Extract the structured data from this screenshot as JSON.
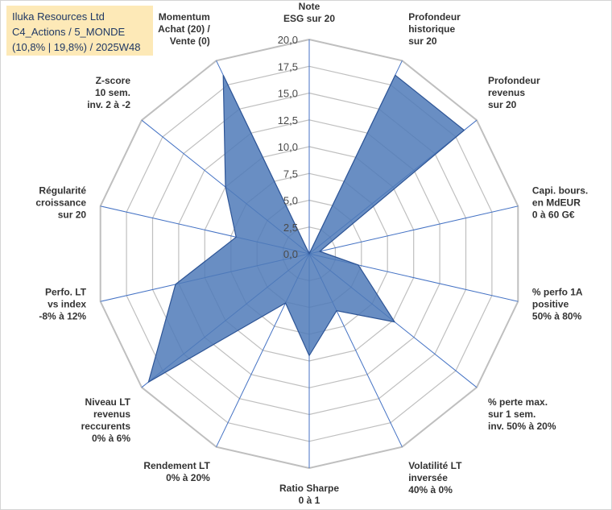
{
  "header": {
    "title": "Iluka Resources Ltd",
    "line2": "C4_Actions / 5_MONDE",
    "line3": "(10,8% | 19,8%) / 2025W48"
  },
  "chart_data": {
    "type": "radar",
    "rmin": 0,
    "rmax": 20,
    "tick_values": [
      0,
      2.5,
      5,
      7.5,
      10,
      12.5,
      15,
      17.5,
      20
    ],
    "tick_labels": [
      "0,0",
      "2,5",
      "5,0",
      "7,5",
      "10,0",
      "12,5",
      "15,0",
      "17,5",
      "20,0"
    ],
    "categories": [
      [
        "Note",
        "ESG sur 20"
      ],
      [
        "Profondeur",
        "historique",
        "sur 20"
      ],
      [
        "Profondeur",
        "revenus",
        "sur 20"
      ],
      [
        "Capi. bours.",
        "en MdEUR",
        "0 à 60 G€"
      ],
      [
        "% perfo 1A",
        "positive",
        "50% à 80%"
      ],
      [
        "% perte max.",
        "sur 1 sem.",
        "inv. 50% à 20%"
      ],
      [
        "Volatilité LT",
        "inversée",
        "40% à 0%"
      ],
      [
        "Ratio Sharpe",
        "0 à 1"
      ],
      [
        "Rendement LT",
        "0% à 20%"
      ],
      [
        "Niveau LT",
        "revenus",
        "reccurents",
        "0% à 6%"
      ],
      [
        "Perfo. LT",
        "vs index",
        "-8% à 12%"
      ],
      [
        "Régularité",
        "croissance",
        "sur 20"
      ],
      [
        "Z-score",
        "10 sem.",
        "inv. 2 à -2"
      ],
      [
        "Momentum",
        "Achat (20) /",
        "Vente (0)"
      ]
    ],
    "series": [
      {
        "values": [
          0,
          18.5,
          18.5,
          1.0,
          4.7,
          10.2,
          5.9,
          9.5,
          5.1,
          19.2,
          12.8,
          7.0,
          10.0,
          18.5
        ]
      }
    ],
    "colors": {
      "fill": "#4f7ab8",
      "stroke": "#2e5596",
      "grid": "#bfbfbf",
      "axis": "#4472c4"
    }
  }
}
